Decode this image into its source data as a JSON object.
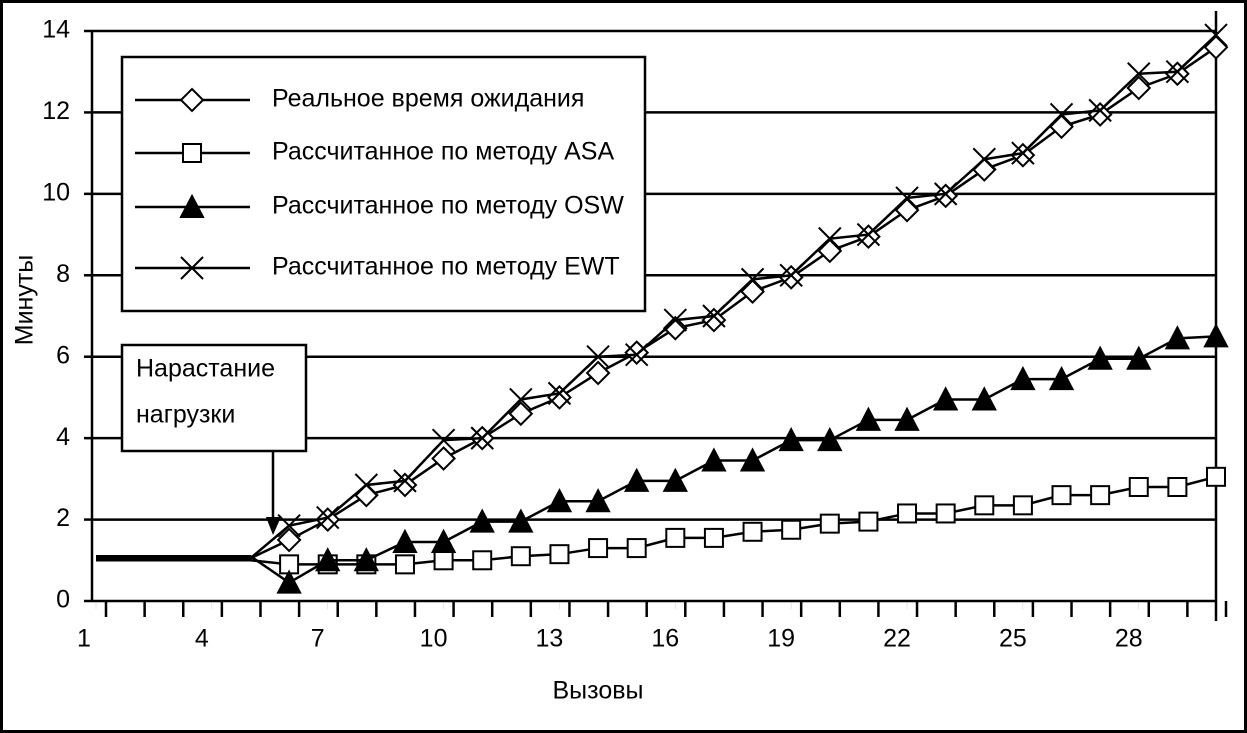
{
  "chart_data": {
    "type": "line",
    "x": [
      1,
      2,
      3,
      4,
      5,
      6,
      7,
      8,
      9,
      10,
      11,
      12,
      13,
      14,
      15,
      16,
      17,
      18,
      19,
      20,
      21,
      22,
      23,
      24,
      25,
      26,
      27,
      28,
      29,
      30
    ],
    "xlim": [
      1,
      30
    ],
    "xticks": [
      1,
      4,
      7,
      10,
      13,
      16,
      19,
      22,
      25,
      28
    ],
    "ylim": [
      0,
      14
    ],
    "yticks": [
      0,
      2,
      4,
      6,
      8,
      10,
      12,
      14
    ],
    "grid": true,
    "xlabel": "Вызовы",
    "ylabel": "Минуты",
    "annotation": [
      "Нарастание",
      "нагрузки"
    ],
    "legend": "upper left",
    "series": [
      {
        "name": "Реальное время ожидания",
        "color": "#000000",
        "marker": "diamond",
        "values": [
          1.05,
          1.05,
          1.05,
          1.05,
          1.05,
          1.5,
          2.0,
          2.6,
          2.85,
          3.5,
          4.0,
          4.6,
          5.0,
          5.6,
          6.1,
          6.7,
          6.9,
          7.6,
          7.95,
          8.6,
          8.95,
          9.6,
          9.95,
          10.6,
          10.95,
          11.65,
          11.95,
          12.6,
          12.95,
          13.6
        ]
      },
      {
        "name": "Рассчитанное по методу ASA",
        "color": "#000000",
        "marker": "square",
        "values": [
          1.0,
          1.0,
          1.0,
          1.0,
          1.0,
          0.9,
          0.9,
          0.9,
          0.9,
          1.0,
          1.0,
          1.1,
          1.15,
          1.3,
          1.3,
          1.55,
          1.55,
          1.7,
          1.75,
          1.9,
          1.95,
          2.15,
          2.15,
          2.35,
          2.35,
          2.6,
          2.6,
          2.8,
          2.8,
          3.05
        ]
      },
      {
        "name": "Рассчитанное по методу OSW",
        "color": "#000000",
        "marker": "triangle",
        "values": [
          1.1,
          1.1,
          1.1,
          1.1,
          1.1,
          0.45,
          1.0,
          1.0,
          1.45,
          1.45,
          1.95,
          1.95,
          2.45,
          2.45,
          2.95,
          2.95,
          3.45,
          3.45,
          3.95,
          3.95,
          4.45,
          4.45,
          4.95,
          4.95,
          5.45,
          5.45,
          5.95,
          5.95,
          6.45,
          6.5
        ]
      },
      {
        "name": "Рассчитанное по методу EWT",
        "color": "#000000",
        "marker": "x",
        "values": [
          1.05,
          1.05,
          1.05,
          1.05,
          1.05,
          1.85,
          2.05,
          2.85,
          2.95,
          3.95,
          4.0,
          4.95,
          5.1,
          6.0,
          6.05,
          6.9,
          7.0,
          7.9,
          8.0,
          8.9,
          9.0,
          9.9,
          10.0,
          10.85,
          11.0,
          11.95,
          12.05,
          12.95,
          13.0,
          13.9
        ]
      }
    ]
  }
}
